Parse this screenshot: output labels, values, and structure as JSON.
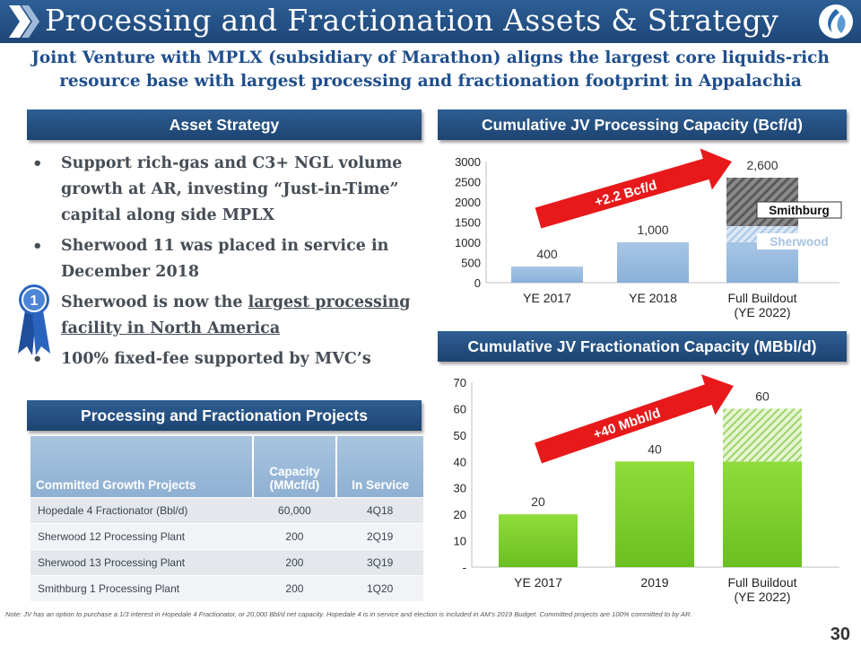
{
  "header": {
    "title": "Processing and Fractionation Assets & Strategy",
    "subtitle_line1": "Joint Venture with MPLX (subsidiary of Marathon) aligns the largest core liquids-rich",
    "subtitle_line2": "resource base with largest processing and fractionation footprint in Appalachia"
  },
  "colors": {
    "navy": "#1f4677",
    "accent_red": "#e8191b",
    "bar_blue": "#92b6dd",
    "bar_green": "#7ccd2a"
  },
  "asset_strategy": {
    "header": "Asset Strategy",
    "bullets": [
      {
        "text": "Support rich-gas and C3+ NGL volume growth at AR, investing “Just-in-Time” capital along side MPLX"
      },
      {
        "text": "Sherwood 11 was placed in service in December 2018"
      },
      {
        "text_before": "Sherwood is now the ",
        "text_underlined": "largest processing facility in North America",
        "icon": "first-place-ribbon-icon",
        "ribbon_label": "1"
      },
      {
        "text": "100% fixed-fee supported by MVC’s"
      }
    ]
  },
  "projects": {
    "header": "Processing and Fractionation Projects",
    "columns": [
      "Committed Growth Projects",
      "Capacity (MMcf/d)",
      "In Service"
    ],
    "rows": [
      [
        "Hopedale 4 Fractionator (Bbl/d)",
        "60,000",
        "4Q18"
      ],
      [
        "Sherwood 12 Processing Plant",
        "200",
        "2Q19"
      ],
      [
        "Sherwood 13 Processing Plant",
        "200",
        "3Q19"
      ],
      [
        "Smithburg 1 Processing Plant",
        "200",
        "1Q20"
      ]
    ]
  },
  "chart_data": [
    {
      "type": "bar",
      "title": "Cumulative JV Processing Capacity (Bcf/d)",
      "categories": [
        "YE 2017",
        "YE 2018",
        "Full Buildout (YE 2022)"
      ],
      "category_lines": [
        [
          "YE 2017"
        ],
        [
          "YE 2018"
        ],
        [
          "Full Buildout",
          "(YE 2022)"
        ]
      ],
      "values": [
        400,
        1000,
        2600
      ],
      "data_labels": [
        "400",
        "1,000",
        "2,600"
      ],
      "stacked_last": [
        {
          "name": "",
          "value": 1000
        },
        {
          "name": "Sherwood",
          "value": 400
        },
        {
          "name": "Smithburg",
          "value": 1200
        }
      ],
      "yticks": [
        "0",
        "500",
        "1000",
        "1500",
        "2000",
        "2500",
        "3000"
      ],
      "ylim": [
        0,
        3000
      ],
      "annotation": "+2.2 Bcf/d",
      "legend": "inside-right",
      "grid": false
    },
    {
      "type": "bar",
      "title": "Cumulative JV Fractionation Capacity (MBbl/d)",
      "categories": [
        "YE 2017",
        "2019",
        "Full Buildout (YE 2022)"
      ],
      "category_lines": [
        [
          "YE 2017"
        ],
        [
          "2019"
        ],
        [
          "Full Buildout",
          "(YE 2022)"
        ]
      ],
      "values": [
        20,
        40,
        60
      ],
      "data_labels": [
        "20",
        "40",
        "60"
      ],
      "stacked_last": [
        {
          "name": "",
          "value": 40
        },
        {
          "name": "",
          "value": 20
        }
      ],
      "yticks": [
        "-",
        "10",
        "20",
        "30",
        "40",
        "50",
        "60",
        "70"
      ],
      "ylim": [
        0,
        70
      ],
      "annotation": "+40 Mbbl/d",
      "grid": false
    }
  ],
  "footer": {
    "note": "Note: JV has an option to purchase a 1/3 interest in Hopedale 4 Fractionator, or 20,000 Bbl/d net capacity.  Hopedale 4 is in service and election is included in AM’s 2019 Budget. Committed projects are 100% committed to by AR.",
    "page_number": "30"
  }
}
